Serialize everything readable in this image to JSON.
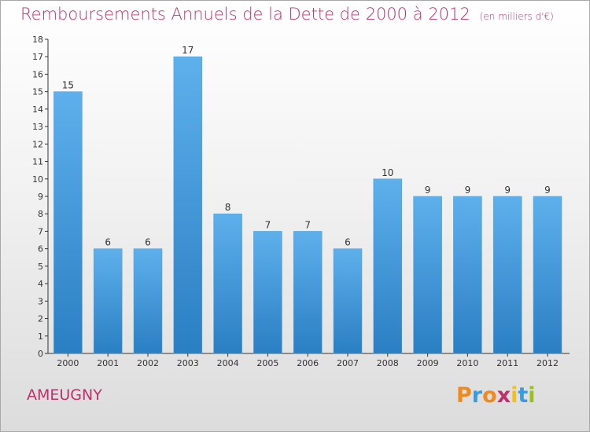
{
  "header": {
    "title": "Remboursements Annuels de la Dette de 2000 à 2012",
    "unit": "(en milliers d'€)"
  },
  "footer": {
    "place": "AMEUGNY",
    "logo": "Proxiti"
  },
  "colors": {
    "title": "#c0306a",
    "bar_top": "#5eb0ec",
    "bar_bottom": "#2a7fc3",
    "logo_letters": [
      "#f08a1c",
      "#3a9be0",
      "#f08a1c",
      "#c0306a",
      "#f0c020",
      "#3a9be0",
      "#9ac020"
    ]
  },
  "chart_data": {
    "type": "bar",
    "title": "Remboursements Annuels de la Dette de 2000 à 2012",
    "unit": "(en milliers d'€)",
    "categories": [
      "2000",
      "2001",
      "2002",
      "2003",
      "2004",
      "2005",
      "2006",
      "2007",
      "2008",
      "2009",
      "2010",
      "2011",
      "2012"
    ],
    "values": [
      15,
      6,
      6,
      17,
      8,
      7,
      7,
      6,
      10,
      9,
      9,
      9,
      9
    ],
    "ylim": [
      0,
      18
    ],
    "yticks": [
      0,
      1,
      2,
      3,
      4,
      5,
      6,
      7,
      8,
      9,
      10,
      11,
      12,
      13,
      14,
      15,
      16,
      17,
      18
    ],
    "grid": false,
    "legend": "none"
  }
}
